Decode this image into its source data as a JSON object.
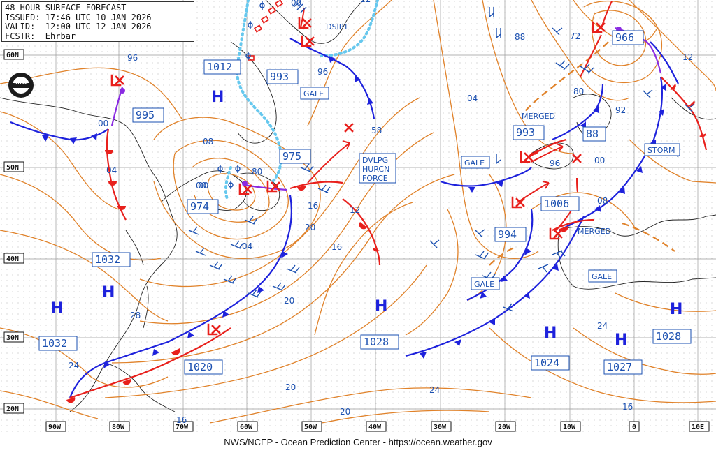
{
  "header": {
    "line1": "48-HOUR SURFACE FORECAST",
    "line2": "ISSUED: 17:46 UTC 10 JAN 2026",
    "line3": "VALID:  12:00 UTC 12 JAN 2026",
    "line4": "FCSTR:  Ehrbar"
  },
  "footer": "NWS/NCEP - Ocean Prediction Center - https://ocean.weather.gov",
  "logo_text": "NOAA",
  "latitude_labels": [
    "60N",
    "50N",
    "40N",
    "30N",
    "20N"
  ],
  "longitude_labels": [
    "90W",
    "80W",
    "70W",
    "60W",
    "50W",
    "40W",
    "30W",
    "20W",
    "10W",
    "0",
    "10E"
  ],
  "highs": [
    "H",
    "H",
    "H",
    "H",
    "H",
    "H",
    "H"
  ],
  "pressure_labels": [
    "1012",
    "993",
    "995",
    "975",
    "974",
    "1032",
    "1032",
    "1020",
    "1028",
    "1024",
    "1027",
    "1028",
    "994",
    "1006",
    "993",
    "88",
    "966"
  ],
  "warnings": {
    "gale_1": "GALE",
    "gale_2": "GALE",
    "gale_3": "GALE",
    "gale_4": "GALE",
    "storm": "STORM",
    "dsipt": "DSIPT",
    "dvlpg_1": "DVLPG",
    "dvlpg_2": "HURCN",
    "dvlpg_3": "FORCE",
    "merged_1": "MERGED",
    "merged_2": "MERGED"
  },
  "isobar_labels": [
    "96",
    "00",
    "04",
    "08",
    "00",
    "80",
    "04",
    "12",
    "16",
    "20",
    "28",
    "24",
    "20",
    "24",
    "20",
    "16",
    "58",
    "96",
    "04",
    "88",
    "72",
    "80",
    "92",
    "12",
    "96",
    "00",
    "08",
    "24",
    "16",
    "00",
    "20",
    "12",
    "16",
    "00"
  ],
  "colors": {
    "isobar": "#e0822a",
    "cold_front": "#1e22dc",
    "warm_front": "#e8201c",
    "occluded": "#8a2be2",
    "ice_edge": "#66c8ee",
    "label": "#1a4fb0",
    "grid": "#9a9a9a"
  }
}
